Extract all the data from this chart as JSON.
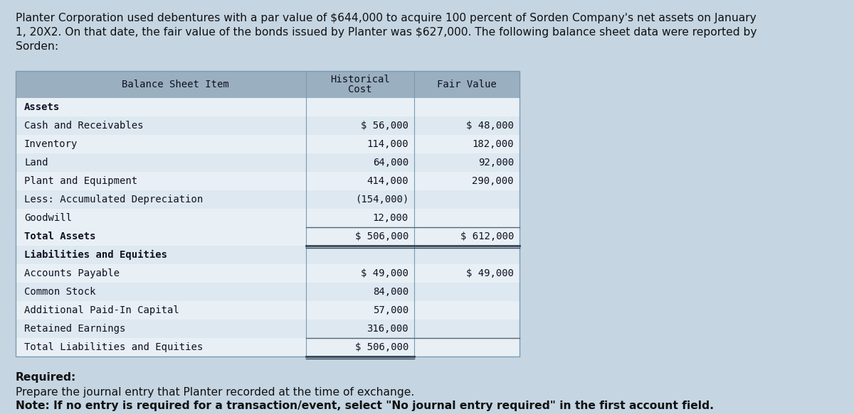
{
  "bg_color": "#c5d5e2",
  "header_bg": "#9aafc0",
  "row_light": "#dde8f0",
  "row_lighter": "#e8f0f6",
  "intro_text_line1": "Planter Corporation used debentures with a par value of $644,000 to acquire 100 percent of Sorden Company's net assets on January",
  "intro_text_line2": "1, 20X2. On that date, the fair value of the bonds issued by Planter was $627,000. The following balance sheet data were reported by",
  "intro_text_line3": "Sorden:",
  "col_header_item": "Balance Sheet Item",
  "col_header_hist1": "Historical",
  "col_header_hist2": "Cost",
  "col_header_fair": "Fair Value",
  "section1_label": "Assets",
  "rows_assets": [
    {
      "label": "Cash and Receivables",
      "hist": "$ 56,000",
      "fair": "$ 48,000"
    },
    {
      "label": "Inventory",
      "hist": "114,000",
      "fair": "182,000"
    },
    {
      "label": "Land",
      "hist": "64,000",
      "fair": "92,000"
    },
    {
      "label": "Plant and Equipment",
      "hist": "414,000",
      "fair": "290,000"
    },
    {
      "label": "Less: Accumulated Depreciation",
      "hist": "(154,000)",
      "fair": ""
    },
    {
      "label": "Goodwill",
      "hist": "12,000",
      "fair": ""
    }
  ],
  "total_assets_label": "Total Assets",
  "total_assets_hist": "$ 506,000",
  "total_assets_fair": "$ 612,000",
  "section2_label": "Liabilities and Equities",
  "rows_liab": [
    {
      "label": "Accounts Payable",
      "hist": "$ 49,000",
      "fair": "$ 49,000"
    },
    {
      "label": "Common Stock",
      "hist": "84,000",
      "fair": ""
    },
    {
      "label": "Additional Paid-In Capital",
      "hist": "57,000",
      "fair": ""
    },
    {
      "label": "Retained Earnings",
      "hist": "316,000",
      "fair": ""
    }
  ],
  "total_liab_label": "Total Liabilities and Equities",
  "total_liab_hist": "$ 506,000",
  "total_liab_fair": "",
  "required_label": "Required:",
  "required_text1": "Prepare the journal entry that Planter recorded at the time of exchange.",
  "required_text2": "Note: If no entry is required for a transaction/event, select \"No journal entry required\" in the first account field.",
  "font_size_intro": 11.2,
  "font_size_table": 10.0,
  "font_size_req": 11.2
}
